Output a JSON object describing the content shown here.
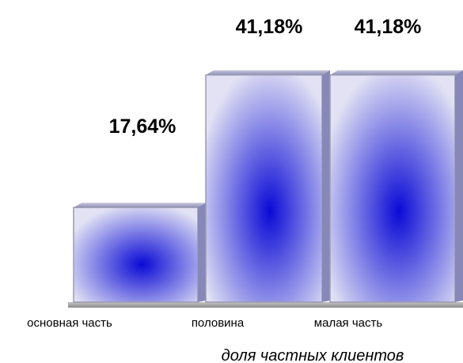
{
  "chart_data": {
    "type": "bar",
    "categories": [
      "основная часть",
      "половина",
      "малая часть"
    ],
    "values": [
      17.64,
      41.18,
      41.18
    ],
    "value_labels": [
      "17,64%",
      "41,18%",
      "41,18%"
    ],
    "xlabel": "доля частных клиентов",
    "ylabel": "",
    "ylim": [
      0,
      45
    ],
    "style": "3d-columns",
    "bar_colors": {
      "center": "#0a0ad6",
      "edge": "#e2e2f4",
      "rim": "#9a9ab2"
    },
    "grid": false,
    "legend": "none"
  }
}
